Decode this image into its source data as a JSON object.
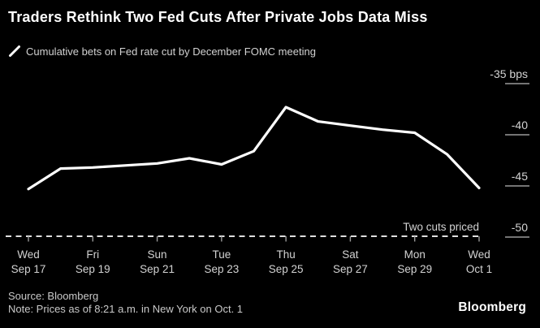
{
  "title": "Traders Rethink Two Fed Cuts After Private Jobs Data Miss",
  "subtitle": "Cumulative bets on Fed rate cut by December FOMC meeting",
  "legend_icon": "line-series-slash-icon",
  "chart_data": {
    "type": "line",
    "title": "Traders Rethink Two Fed Cuts After Private Jobs Data Miss",
    "subtitle": "Cumulative bets on Fed rate cut by December FOMC meeting",
    "unit": "bps",
    "x": [
      "Sep 17",
      "Sep 18",
      "Sep 19",
      "Sep 20",
      "Sep 21",
      "Sep 22",
      "Sep 23",
      "Sep 24",
      "Sep 25",
      "Sep 26",
      "Sep 27",
      "Sep 28",
      "Sep 29",
      "Sep 30",
      "Oct 1"
    ],
    "values": [
      -45.3,
      -43.3,
      -43.2,
      -43.0,
      -42.8,
      -42.3,
      -42.9,
      -41.6,
      -37.3,
      -38.7,
      -39.1,
      -39.5,
      -39.8,
      -41.9,
      -45.2
    ],
    "ylim": [
      -50,
      -35
    ],
    "yticks": [
      {
        "value": -35,
        "label": "-35 bps"
      },
      {
        "value": -40,
        "label": "-40"
      },
      {
        "value": -45,
        "label": "-45"
      },
      {
        "value": -50,
        "label": "-50"
      }
    ],
    "xticks": [
      {
        "index": 0,
        "day": "Wed",
        "date": "Sep 17"
      },
      {
        "index": 2,
        "day": "Fri",
        "date": "Sep 19"
      },
      {
        "index": 4,
        "day": "Sun",
        "date": "Sep 21"
      },
      {
        "index": 6,
        "day": "Tue",
        "date": "Sep 23"
      },
      {
        "index": 8,
        "day": "Thu",
        "date": "Sep 25"
      },
      {
        "index": 10,
        "day": "Sat",
        "date": "Sep 27"
      },
      {
        "index": 12,
        "day": "Mon",
        "date": "Sep 29"
      },
      {
        "index": 14,
        "day": "Wed",
        "date": "Oct 1"
      }
    ],
    "threshold": {
      "value": -50,
      "label": "Two cuts priced",
      "style": "dashed"
    },
    "grid": false,
    "legend_position": "top-left",
    "line_color": "#ffffff"
  },
  "footer": {
    "source": "Source: Bloomberg",
    "note": "Note: Prices as of 8:21 a.m. in New York on Oct. 1"
  },
  "branding": {
    "logo": "Bloomberg"
  },
  "colors": {
    "background": "#000000",
    "title_text": "#ffffff",
    "line": "#ffffff",
    "secondary_text": "#d2d2d2",
    "axis_text": "#d2d2d2",
    "footer_text": "#c9c9c9",
    "tick": "#9a9a9a",
    "dashed_line": "#dedede"
  }
}
